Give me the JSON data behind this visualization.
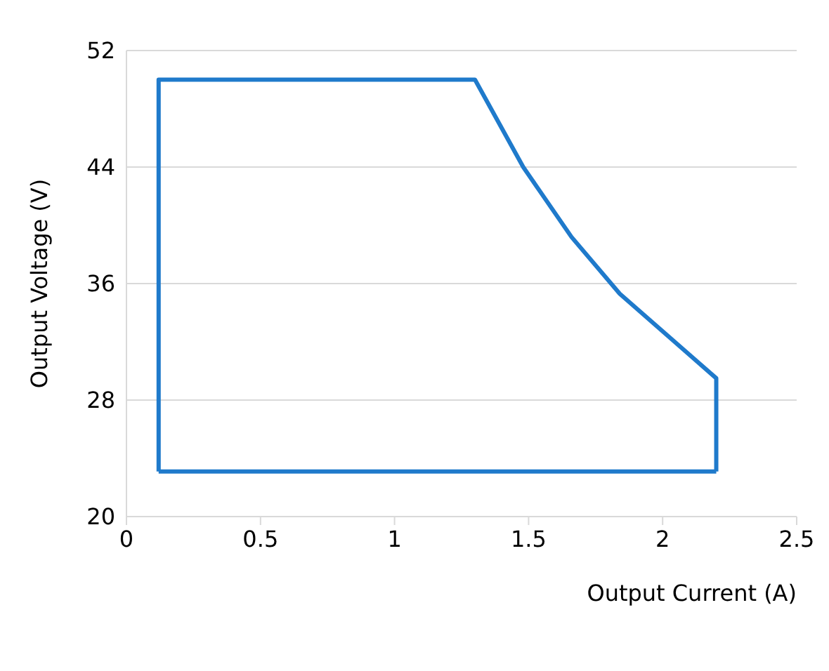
{
  "chart_data": {
    "type": "line",
    "xlabel": "Output Current (A)",
    "ylabel": "Output Voltage (V)",
    "series": [
      {
        "color": "#1f7acb",
        "x": [
          0.12,
          0.12,
          1.3,
          1.48,
          1.66,
          1.84,
          2.2,
          2.2
        ],
        "values": [
          23.1,
          50,
          50,
          44,
          39.2,
          35.3,
          29.5,
          23.1
        ]
      },
      {
        "color": "#1f7acb",
        "x": [
          0.12,
          2.2
        ],
        "values": [
          23.1,
          23.1
        ]
      }
    ],
    "xlim": [
      0,
      2.5
    ],
    "xticks": [
      0,
      0.5,
      1,
      1.5,
      2,
      2.5
    ],
    "ylim": [
      20,
      52
    ],
    "yticks": [
      20,
      28,
      36,
      44,
      52
    ],
    "grid": "y",
    "marker": "none",
    "line_style": "solid"
  }
}
